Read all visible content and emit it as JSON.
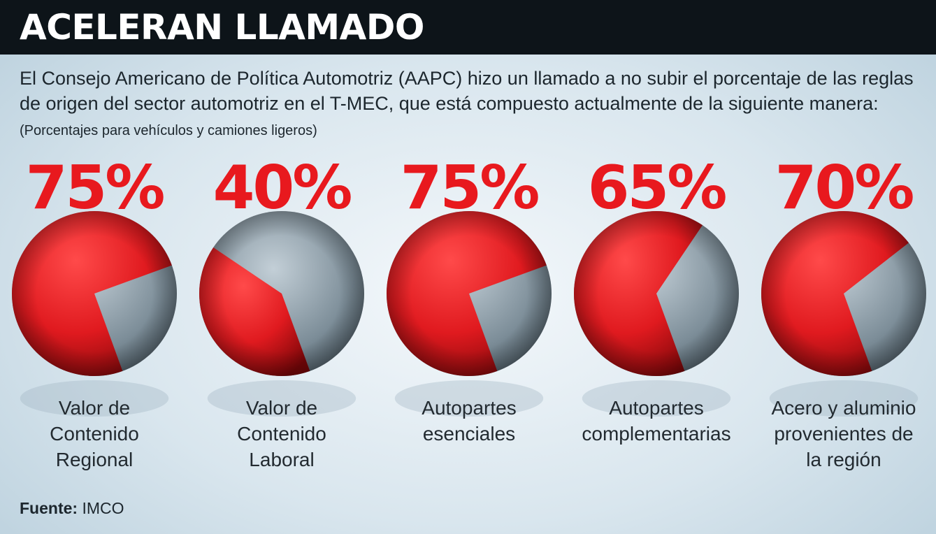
{
  "title": "ACELERAN LLAMADO",
  "description": {
    "main": "El Consejo Americano de Política Automotriz (AAPC) hizo un llamado a no subir el porcentaje de las reglas de origen del sector automotriz en el T-MEC, que está compuesto actualmente de la siguiente manera:",
    "note": "(Porcentajes para vehículos y camiones ligeros)"
  },
  "chart_data": {
    "type": "pie",
    "unit": "%",
    "items": [
      {
        "value": 75,
        "value_label": "75%",
        "label_lines": [
          "Valor de",
          "Contenido",
          "Regional"
        ]
      },
      {
        "value": 40,
        "value_label": "40%",
        "label_lines": [
          "Valor de",
          "Contenido",
          "Laboral"
        ]
      },
      {
        "value": 75,
        "value_label": "75%",
        "label_lines": [
          "Autopartes",
          "esenciales"
        ]
      },
      {
        "value": 65,
        "value_label": "65%",
        "label_lines": [
          "Autopartes",
          "complementarias"
        ]
      },
      {
        "value": 70,
        "value_label": "70%",
        "label_lines": [
          "Acero y aluminio",
          "provenientes de",
          "la región"
        ]
      }
    ],
    "colors": {
      "highlight": "#e8191e",
      "remainder": "#8a9aa5"
    }
  },
  "source": {
    "label": "Fuente:",
    "value": "IMCO"
  }
}
